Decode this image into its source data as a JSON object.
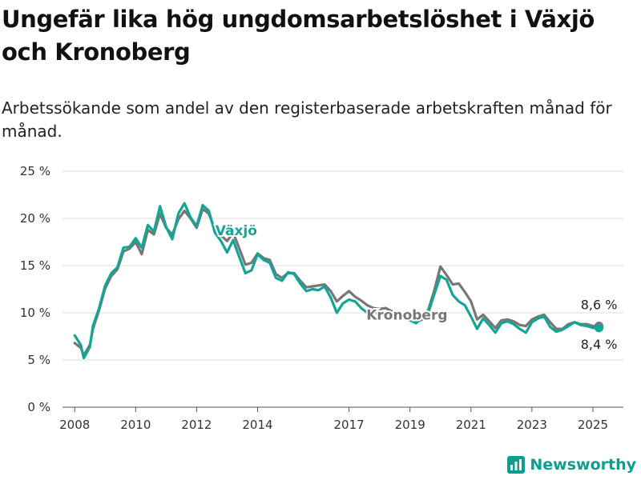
{
  "title": "Ungefär lika hög ungdomsarbetslöshet i Växjö och Kronoberg",
  "subtitle": "Arbetssökande som andel av den registerbaserade arbetskraften månad för månad.",
  "brand": "Newsworthy",
  "colors": {
    "vaxjo": "#13a596",
    "kronoberg": "#777777"
  },
  "chart_data": {
    "type": "line",
    "title": "Ungefär lika hög ungdomsarbetslöshet i Växjö och Kronoberg",
    "subtitle": "Arbetssökande som andel av den registerbaserade arbetskraften månad för månad.",
    "xlabel": "",
    "ylabel": "",
    "ylim": [
      0,
      25
    ],
    "xlim": [
      2007.6,
      2026.0
    ],
    "yticks": [
      0,
      5,
      10,
      15,
      20,
      25
    ],
    "ytick_labels": [
      "0 %",
      "5 %",
      "10 %",
      "15 %",
      "20 %",
      "25 %"
    ],
    "xticks": [
      2008,
      2010,
      2012,
      2014,
      2017,
      2019,
      2021,
      2023,
      2025
    ],
    "xtick_labels": [
      "2008",
      "2010",
      "2012",
      "2014",
      "2017",
      "2019",
      "2021",
      "2023",
      "2025"
    ],
    "grid": true,
    "legend": "direct labels",
    "end_labels": {
      "vaxjo": "8,4 %",
      "kronoberg": "8,6 %"
    },
    "series": [
      {
        "name": "Växjö",
        "x": [
          2008.0,
          2008.2,
          2008.3,
          2008.5,
          2008.6,
          2008.8,
          2009.0,
          2009.2,
          2009.4,
          2009.6,
          2009.8,
          2010.0,
          2010.2,
          2010.4,
          2010.6,
          2010.8,
          2011.0,
          2011.2,
          2011.4,
          2011.6,
          2011.8,
          2012.0,
          2012.2,
          2012.4,
          2012.6,
          2012.8,
          2013.0,
          2013.2,
          2013.4,
          2013.6,
          2013.8,
          2014.0,
          2014.2,
          2014.4,
          2014.6,
          2014.8,
          2015.0,
          2015.2,
          2015.4,
          2015.6,
          2015.8,
          2016.0,
          2016.2,
          2016.4,
          2016.6,
          2016.8,
          2017.0,
          2017.2,
          2017.4,
          2017.6,
          2017.8,
          2018.0,
          2018.2,
          2018.5,
          2019.0,
          2019.2,
          2019.4,
          2019.6,
          2019.8,
          2020.0,
          2020.2,
          2020.4,
          2020.6,
          2020.8,
          2021.0,
          2021.2,
          2021.4,
          2021.6,
          2021.8,
          2022.0,
          2022.2,
          2022.4,
          2022.6,
          2022.8,
          2023.0,
          2023.2,
          2023.4,
          2023.6,
          2023.8,
          2024.0,
          2024.2,
          2024.4,
          2024.6,
          2024.8,
          2025.0,
          2025.2
        ],
        "values": [
          7.6,
          6.6,
          5.2,
          6.4,
          8.6,
          10.5,
          12.9,
          14.2,
          14.8,
          16.9,
          17.0,
          17.9,
          16.9,
          19.3,
          18.6,
          21.3,
          19.1,
          17.8,
          20.5,
          21.6,
          20.1,
          19.2,
          21.4,
          20.8,
          18.5,
          17.6,
          16.4,
          17.7,
          15.9,
          14.2,
          14.5,
          16.2,
          15.6,
          15.3,
          13.7,
          13.4,
          14.3,
          14.1,
          13.1,
          12.3,
          12.5,
          12.4,
          12.8,
          11.6,
          10.0,
          11.0,
          11.4,
          11.2,
          10.5,
          10.0,
          10.2,
          9.8,
          10.0,
          9.6,
          9.2,
          8.9,
          9.5,
          10.0,
          12.0,
          13.9,
          13.5,
          11.9,
          11.2,
          10.8,
          9.6,
          8.3,
          9.4,
          8.7,
          7.9,
          8.9,
          9.1,
          8.8,
          8.3,
          7.9,
          9.0,
          9.4,
          9.6,
          8.5,
          8.0,
          8.2,
          8.6,
          9.0,
          8.7,
          8.6,
          8.4,
          8.4
        ]
      },
      {
        "name": "Kronoberg",
        "x": [
          2008.0,
          2008.2,
          2008.3,
          2008.5,
          2008.6,
          2008.8,
          2009.0,
          2009.2,
          2009.4,
          2009.6,
          2009.8,
          2010.0,
          2010.2,
          2010.4,
          2010.6,
          2010.8,
          2011.0,
          2011.2,
          2011.4,
          2011.6,
          2011.8,
          2012.0,
          2012.2,
          2012.4,
          2012.6,
          2012.8,
          2013.0,
          2013.2,
          2013.4,
          2013.6,
          2013.8,
          2014.0,
          2014.2,
          2014.4,
          2014.6,
          2014.8,
          2015.0,
          2015.2,
          2015.4,
          2015.6,
          2015.8,
          2016.0,
          2016.2,
          2016.4,
          2016.6,
          2016.8,
          2017.0,
          2017.2,
          2017.4,
          2017.6,
          2017.8,
          2018.0,
          2018.2,
          2018.5,
          2019.0,
          2019.2,
          2019.4,
          2019.6,
          2019.8,
          2020.0,
          2020.2,
          2020.4,
          2020.6,
          2020.8,
          2021.0,
          2021.2,
          2021.4,
          2021.6,
          2021.8,
          2022.0,
          2022.2,
          2022.4,
          2022.6,
          2022.8,
          2023.0,
          2023.2,
          2023.4,
          2023.6,
          2023.8,
          2024.0,
          2024.2,
          2024.4,
          2024.6,
          2024.8,
          2025.0,
          2025.2
        ],
        "values": [
          6.8,
          6.3,
          5.5,
          6.6,
          8.3,
          10.3,
          12.6,
          13.9,
          14.6,
          16.5,
          16.8,
          17.5,
          16.2,
          18.8,
          18.3,
          20.5,
          19.0,
          18.3,
          19.9,
          20.8,
          20.0,
          19.0,
          21.0,
          20.5,
          18.9,
          18.2,
          17.6,
          18.5,
          16.8,
          15.1,
          15.3,
          16.3,
          15.8,
          15.6,
          14.1,
          13.7,
          14.2,
          14.2,
          13.4,
          12.7,
          12.8,
          12.9,
          13.0,
          12.3,
          11.2,
          11.8,
          12.3,
          11.7,
          11.3,
          10.8,
          10.5,
          10.4,
          10.5,
          10.0,
          9.3,
          9.0,
          9.3,
          10.3,
          12.4,
          14.9,
          14.0,
          13.0,
          13.1,
          12.2,
          11.2,
          9.3,
          9.8,
          9.1,
          8.4,
          9.2,
          9.3,
          9.1,
          8.7,
          8.6,
          9.3,
          9.6,
          9.8,
          9.0,
          8.3,
          8.3,
          8.8,
          9.0,
          8.8,
          8.8,
          8.6,
          8.6
        ]
      }
    ]
  }
}
